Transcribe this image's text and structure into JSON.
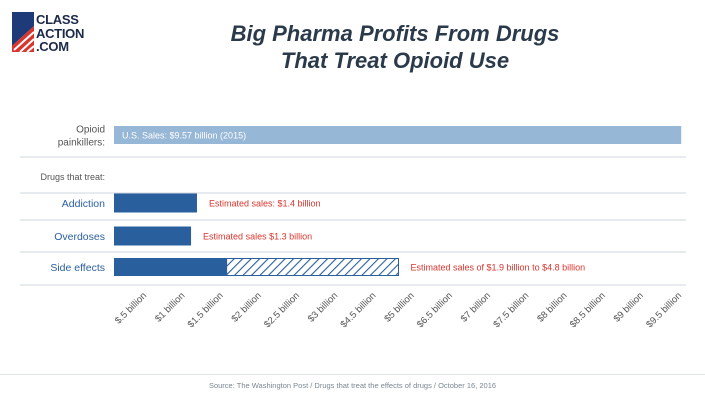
{
  "brand": {
    "line1": "CLASS",
    "line2": "ACTION",
    "line3": ".COM"
  },
  "title_line1": "Big Pharma Profits From Drugs",
  "title_line2": "That Treat Opioid Use",
  "source": "Source: The Washington Post / Drugs that treat the effects of drugs / October 16, 2016",
  "colors": {
    "light_bar": "#97b7d6",
    "dark_bar": "#2a5f9e",
    "label_blue": "#2a5f9e",
    "annotation_red": "#d9352e",
    "text_gray": "#555555",
    "grid": "#cfd6dd"
  },
  "chart_data": {
    "type": "bar",
    "orientation": "horizontal",
    "title": "Big Pharma Profits From Drugs That Treat Opioid Use",
    "section_label": "Drugs that treat:",
    "categories": [
      "Opioid painkillers:",
      "Addiction",
      "Overdoses",
      "Side effects"
    ],
    "category_lines": [
      [
        "Opioid",
        "painkillers:"
      ],
      [
        "Addiction"
      ],
      [
        "Overdoses"
      ],
      [
        "Side effects"
      ]
    ],
    "values": [
      9.57,
      1.4,
      1.3,
      1.9
    ],
    "range_high": [
      null,
      null,
      null,
      4.8
    ],
    "units": "billion USD",
    "bar_labels": [
      "U.S. Sales: $9.57 billion (2015)",
      "Estimated sales: $1.4 billion",
      "Estimated sales $1.3 billion",
      "Estimated sales of $1.9 billion to $4.8 billion"
    ],
    "x_ticks": [
      "$.5 billion",
      "$1 billion",
      "$1.5 billion",
      "$2 billion",
      "$2.5 billion",
      "$3 billion",
      "$4.5 billion",
      "$5 billion",
      "$6.5 billion",
      "$7 billion",
      "$7.5 billion",
      "$8 billion",
      "$8.5 billion",
      "$9 billion",
      "$9.5 billion"
    ],
    "xlim": [
      0,
      9.6
    ],
    "grid": true,
    "legend": "none"
  }
}
